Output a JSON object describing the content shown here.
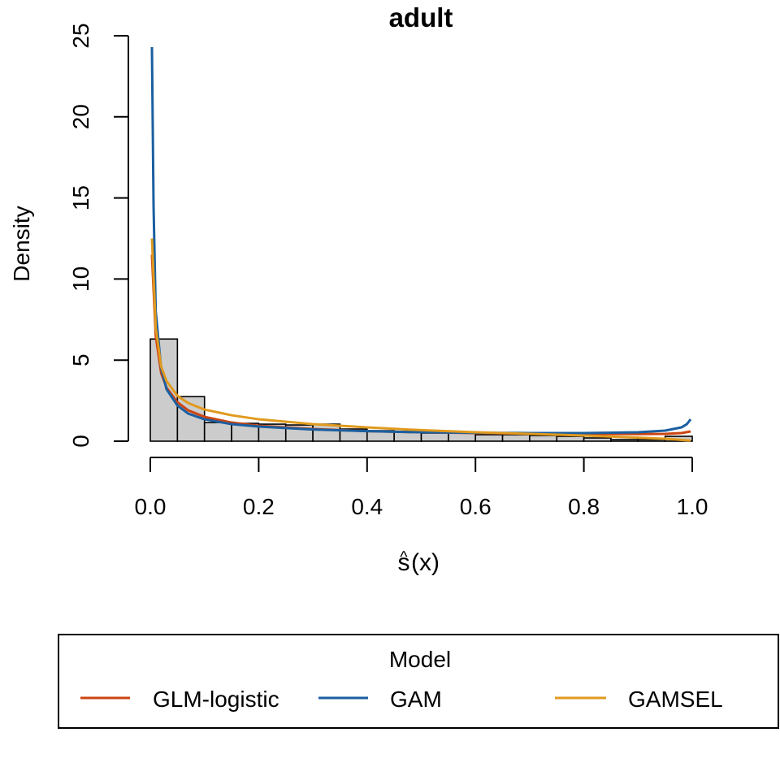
{
  "chart_data": {
    "type": "bar",
    "title": "adult",
    "xlabel_base": "s",
    "xlabel_hat": "^",
    "xlabel_rest": "(x)",
    "ylabel": "Density",
    "xlim": [
      0,
      1
    ],
    "ylim": [
      0,
      25
    ],
    "x_ticks": [
      "0.0",
      "0.2",
      "0.4",
      "0.6",
      "0.8",
      "1.0"
    ],
    "y_ticks": [
      "0",
      "5",
      "10",
      "15",
      "20",
      "25"
    ],
    "histogram": {
      "bin_width": 0.05,
      "bin_starts": [
        0.0,
        0.05,
        0.1,
        0.15,
        0.2,
        0.25,
        0.3,
        0.35,
        0.4,
        0.45,
        0.5,
        0.55,
        0.6,
        0.65,
        0.7,
        0.75,
        0.8,
        0.85,
        0.9,
        0.95
      ],
      "density": [
        6.3,
        2.75,
        1.15,
        1.1,
        1.05,
        1.0,
        1.05,
        0.75,
        0.65,
        0.6,
        0.5,
        0.5,
        0.4,
        0.4,
        0.35,
        0.3,
        0.2,
        0.1,
        0.1,
        0.3
      ],
      "fill": "#cccccc"
    },
    "series": [
      {
        "name": "GLM-logistic",
        "color": "#cc4411",
        "x": [
          0.003,
          0.01,
          0.02,
          0.03,
          0.05,
          0.07,
          0.1,
          0.15,
          0.2,
          0.3,
          0.4,
          0.5,
          0.6,
          0.7,
          0.8,
          0.9,
          0.95,
          0.98,
          0.997
        ],
        "y": [
          11.5,
          6.5,
          4.2,
          3.3,
          2.4,
          1.9,
          1.5,
          1.15,
          0.95,
          0.75,
          0.62,
          0.55,
          0.5,
          0.47,
          0.45,
          0.44,
          0.45,
          0.5,
          0.6
        ]
      },
      {
        "name": "GAM",
        "color": "#1a5fa0",
        "x": [
          0.003,
          0.006,
          0.01,
          0.02,
          0.03,
          0.05,
          0.07,
          0.1,
          0.15,
          0.2,
          0.3,
          0.4,
          0.5,
          0.6,
          0.7,
          0.8,
          0.9,
          0.95,
          0.98,
          0.99,
          0.997
        ],
        "y": [
          24.3,
          14.5,
          8.0,
          4.5,
          3.2,
          2.2,
          1.7,
          1.35,
          1.05,
          0.9,
          0.72,
          0.62,
          0.55,
          0.52,
          0.5,
          0.5,
          0.55,
          0.65,
          0.85,
          1.05,
          1.35
        ]
      },
      {
        "name": "GAMSEL",
        "color": "#e09a1e",
        "x": [
          0.003,
          0.01,
          0.02,
          0.03,
          0.05,
          0.07,
          0.1,
          0.15,
          0.2,
          0.3,
          0.4,
          0.5,
          0.6,
          0.7,
          0.8,
          0.9,
          0.95,
          0.997
        ],
        "y": [
          12.5,
          7.0,
          4.6,
          3.7,
          2.8,
          2.35,
          1.95,
          1.6,
          1.35,
          1.05,
          0.85,
          0.68,
          0.55,
          0.45,
          0.35,
          0.22,
          0.15,
          0.04
        ]
      }
    ],
    "legend": {
      "title": "Model",
      "placement": "bottom"
    }
  }
}
